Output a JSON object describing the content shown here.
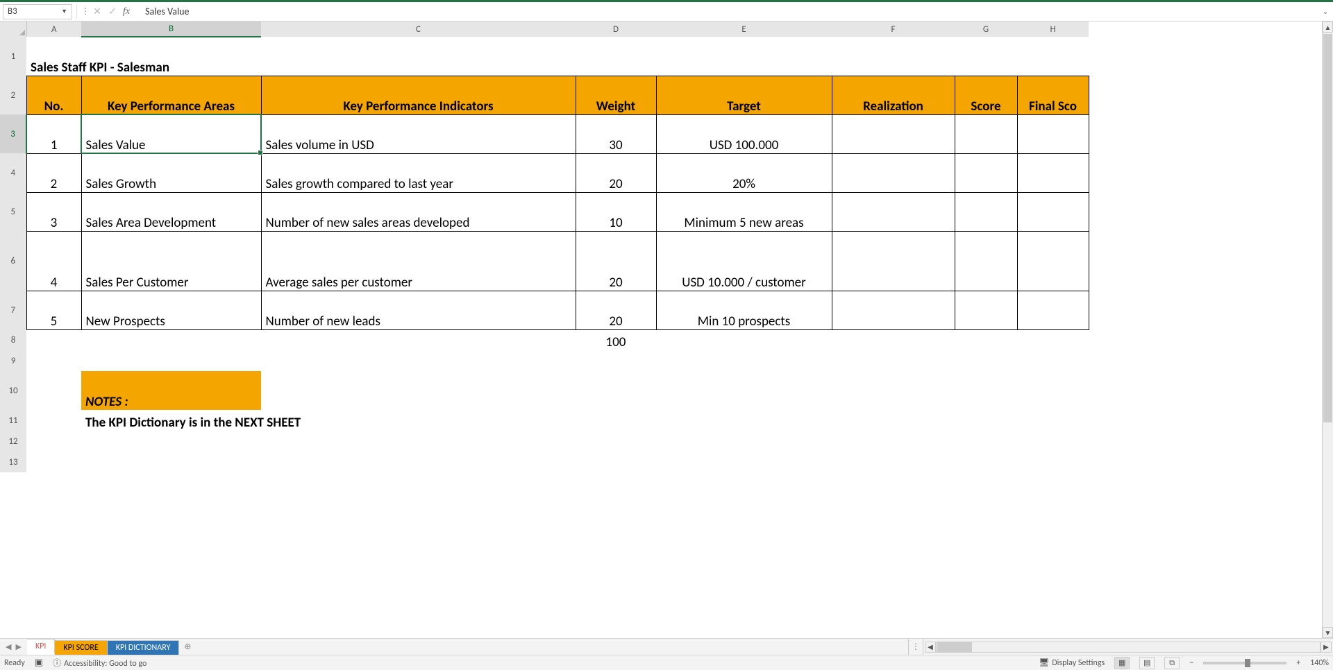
{
  "formula_bar": {
    "cell_ref": "B3",
    "formula_value": "Sales Value"
  },
  "columns": {
    "labels": [
      "A",
      "B",
      "C",
      "D",
      "E",
      "F",
      "G",
      "H"
    ],
    "widths": [
      79,
      259,
      453,
      116,
      253,
      177,
      90,
      103
    ],
    "rowhead_width": 38,
    "active_col_index": 1
  },
  "rows": {
    "labels": [
      "1",
      "2",
      "3",
      "4",
      "5",
      "6",
      "7",
      "8",
      "9",
      "10",
      "11",
      "12",
      "13"
    ],
    "active_row_index": 2
  },
  "sheet_title": "Sales Staff KPI - Salesman",
  "kpi_headers": [
    "No.",
    "Key Performance Areas",
    "Key Performance Indicators",
    "Weight",
    "Target",
    "Realization",
    "Score",
    "Final Sco"
  ],
  "kpi_rows": [
    {
      "no": "1",
      "area": "Sales Value",
      "indicator": "Sales volume in USD",
      "weight": "30",
      "target": "USD 100.000",
      "realization": "",
      "score": "",
      "final": ""
    },
    {
      "no": "2",
      "area": "Sales Growth",
      "indicator": "Sales growth compared to last year",
      "weight": "20",
      "target": "20%",
      "realization": "",
      "score": "",
      "final": ""
    },
    {
      "no": "3",
      "area": "Sales Area Development",
      "indicator": "Number of new sales areas developed",
      "weight": "10",
      "target": "Minimum 5 new areas",
      "realization": "",
      "score": "",
      "final": ""
    },
    {
      "no": "4",
      "area": "Sales Per Customer",
      "indicator": "Average sales per customer",
      "weight": "20",
      "target": "USD 10.000 / customer",
      "realization": "",
      "score": "",
      "final": ""
    },
    {
      "no": "5",
      "area": "New Prospects",
      "indicator": "Number of new leads",
      "weight": "20",
      "target": "Min 10 prospects",
      "realization": "",
      "score": "",
      "final": ""
    }
  ],
  "kpi_total_weight": "100",
  "kpi_tall_row_index": 3,
  "notes_label": "NOTES :",
  "notes_text": "The KPI Dictionary is in the NEXT SHEET",
  "sheet_tabs": {
    "tabs": [
      "KPI",
      "KPI SCORE",
      "KPI DICTIONARY"
    ],
    "active_index": 0
  },
  "status": {
    "ready": "Ready",
    "accessibility": "Accessibility: Good to go",
    "display_settings": "Display Settings",
    "zoom": "140%"
  },
  "colors": {
    "header_orange": "#f5a500",
    "excel_green": "#217346",
    "tab_blue": "#2f75b5"
  }
}
